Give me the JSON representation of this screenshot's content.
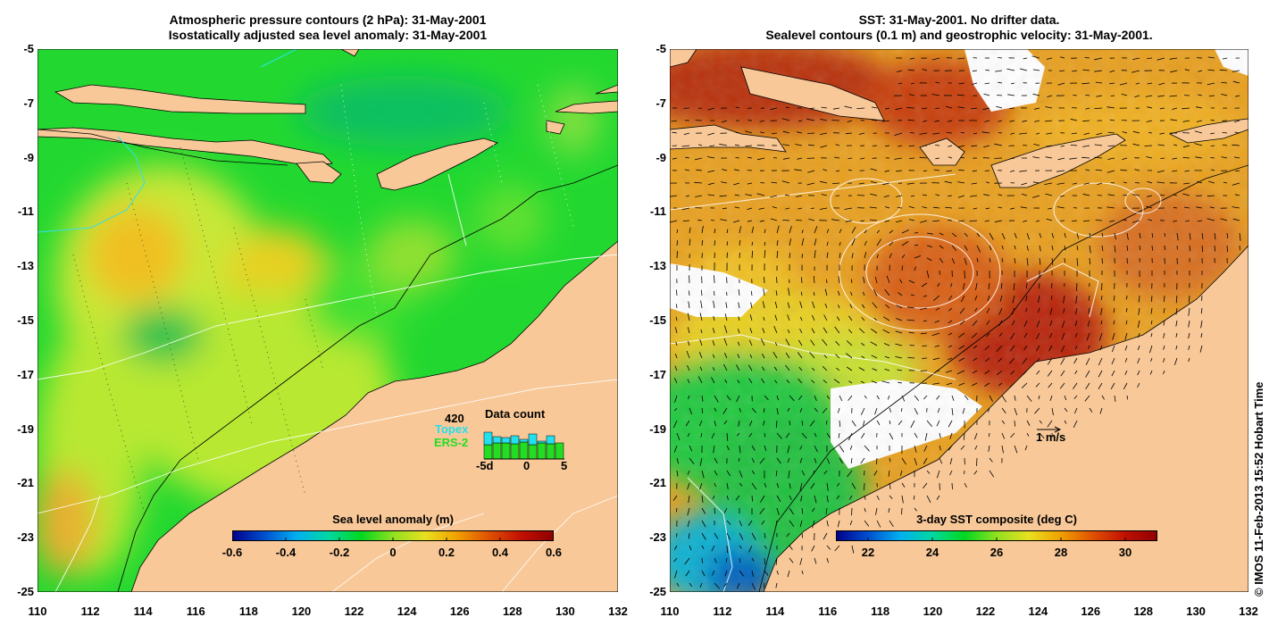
{
  "left_panel": {
    "title_line1": "Atmospheric pressure contours (2 hPa): 31-May-2001",
    "title_line2": "Isostatically adjusted sea level anomaly: 31-May-2001",
    "colorbar": {
      "label": "Sea level anomaly (m)",
      "ticks": [
        "-0.6",
        "-0.4",
        "-0.2",
        "0",
        "0.2",
        "0.4",
        "0.6"
      ],
      "colors": [
        "#00008b",
        "#0050d0",
        "#00b0f0",
        "#00d8a0",
        "#00d820",
        "#90e020",
        "#e8e020",
        "#f0a000",
        "#e05000",
        "#c01000",
        "#900000"
      ]
    },
    "data_count": {
      "title": "Data count",
      "total": "420",
      "topex_label": "Topex",
      "ers2_label": "ERS-2",
      "x_ticks": [
        "-5d",
        "0",
        "5"
      ],
      "topex_color": "#22e0f0",
      "ers2_color": "#22dd22",
      "topex_counts": [
        30,
        25,
        24,
        26,
        22,
        28,
        20,
        26,
        18
      ],
      "ers2_counts": [
        16,
        18,
        18,
        17,
        19,
        16,
        18,
        17,
        18
      ]
    }
  },
  "right_panel": {
    "title_line1": "SST: 31-May-2001. No drifter data.",
    "title_line2": "Sealevel contours (0.1 m) and geostrophic velocity: 31-May-2001.",
    "velocity_scale_label": "1 m/s",
    "colorbar": {
      "label": "3-day SST composite (deg C)",
      "ticks": [
        "22",
        "24",
        "26",
        "28",
        "30"
      ],
      "colors": [
        "#00008b",
        "#0050d0",
        "#00b0f0",
        "#00d8a0",
        "#00d820",
        "#90e020",
        "#e8e020",
        "#f0a000",
        "#e05000",
        "#c01000",
        "#900000"
      ]
    }
  },
  "axes": {
    "y_ticks": [
      "-5",
      "-7",
      "-9",
      "-11",
      "-13",
      "-15",
      "-17",
      "-19",
      "-21",
      "-23",
      "-25"
    ],
    "x_ticks": [
      "110",
      "112",
      "114",
      "116",
      "118",
      "120",
      "122",
      "124",
      "126",
      "128",
      "130",
      "132"
    ]
  },
  "copyright": "© IMOS 11-Feb-2013 15:52 Hobart Time",
  "colors": {
    "land": "#f8c898",
    "ocean_green": "#22d830",
    "ocean_yellow": "#b8e830",
    "sst_orange": "#e89020",
    "sst_red": "#c03010",
    "no_data": "#ffffff"
  }
}
